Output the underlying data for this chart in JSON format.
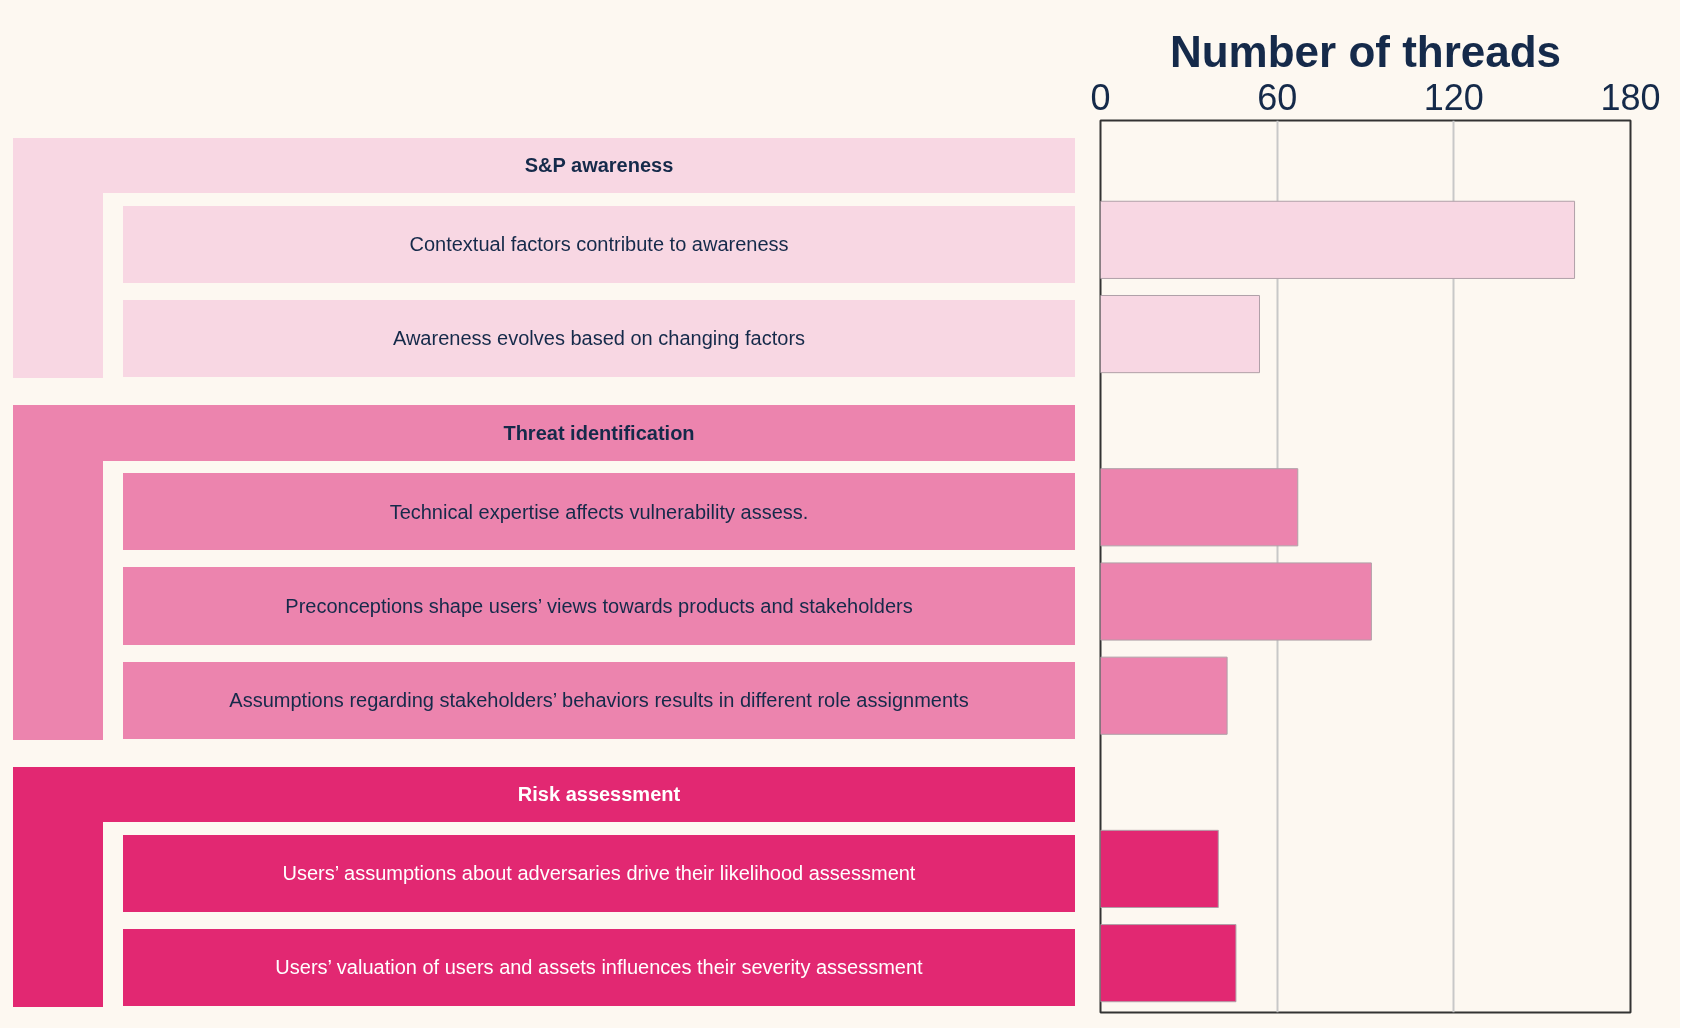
{
  "chart_data": {
    "type": "bar",
    "orientation": "horizontal",
    "title": "Number of threads",
    "categories": [
      "S&P awareness",
      "Contextual factors contribute to awareness",
      "Awareness evolves based on changing factors",
      "Threat identification",
      "Technical expertise affects vulnerability assess.",
      "Preconceptions shape users’ views towards products and stakeholders",
      "Assumptions regarding stakeholders’ behaviors results in different role assignments",
      "Risk assessment",
      "Users’ assumptions about adversaries drive their likelihood assessment",
      "Users’ valuation of users and assets influences their severity assessment"
    ],
    "values": [
      null,
      161,
      54,
      null,
      67,
      92,
      43,
      null,
      40,
      46
    ],
    "colors": [
      "#f8d7e3",
      "#f8d7e3",
      "#f8d7e3",
      "#ec84ae",
      "#ec84ae",
      "#ec84ae",
      "#ec84ae",
      "#e22872",
      "#e22872",
      "#e22872"
    ],
    "xlim": [
      0,
      180
    ],
    "xticks": [
      0,
      60,
      120,
      180
    ],
    "grid": "x"
  }
}
